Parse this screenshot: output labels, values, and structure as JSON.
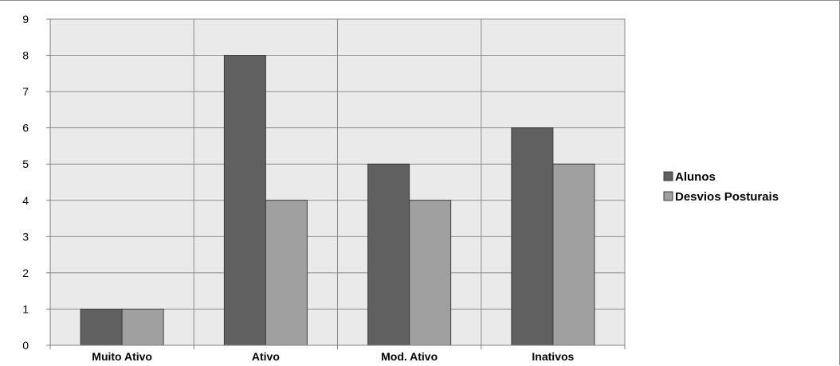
{
  "chart_data": {
    "type": "bar",
    "categories": [
      "Muito Ativo",
      "Ativo",
      "Mod. Ativo",
      "Inativos"
    ],
    "series": [
      {
        "name": "Alunos",
        "values": [
          1,
          8,
          5,
          6
        ],
        "color": "#606060"
      },
      {
        "name": "Desvios Posturais",
        "values": [
          1,
          4,
          4,
          5
        ],
        "color": "#a0a0a0"
      }
    ],
    "ylim": [
      0,
      9
    ],
    "yticks": [
      0,
      1,
      2,
      3,
      4,
      5,
      6,
      7,
      8,
      9
    ],
    "grid": true,
    "plot_background": "#eaeaea",
    "legend_position": "right",
    "title": "",
    "xlabel": "",
    "ylabel": ""
  }
}
